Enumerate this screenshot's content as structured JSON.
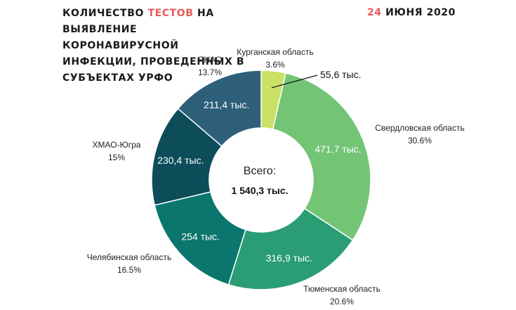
{
  "header": {
    "title_part1": "КОЛИЧЕСТВО ",
    "title_highlight": "ТЕСТОВ",
    "title_part2": " НА ВЫЯВЛЕНИЕ КОРОНАВИРУСНОЙ ИНФЕКЦИИ, ПРОВЕДЕННЫХ В СУБЪЕКТАХ УРФО",
    "date_day": "24",
    "date_rest": " ИЮНЯ 2020"
  },
  "colors": {
    "accent": "#e85a5a"
  },
  "chart_data": {
    "type": "pie",
    "subtype": "donut",
    "center_label": "Всего:",
    "center_value": "1 540,3 тыс.",
    "slices": [
      {
        "name": "Курганская область",
        "percent": "3.6%",
        "value": 55.6,
        "value_label": "55,6 тыс.",
        "color": "#c9e265"
      },
      {
        "name": "Свердловская область",
        "percent": "30.6%",
        "value": 471.7,
        "value_label": "471,7 тыс.",
        "color": "#74c476"
      },
      {
        "name": "Тюменская область",
        "percent": "20.6%",
        "value": 316.9,
        "value_label": "316,9 тыс.",
        "color": "#2a9d74"
      },
      {
        "name": "Челябинская область",
        "percent": "16.5%",
        "value": 254,
        "value_label": "254 тыс.",
        "color": "#0b766e"
      },
      {
        "name": "ХМАО-Югра",
        "percent": "15%",
        "value": 230.4,
        "value_label": "230,4 тыс.",
        "color": "#0d4d5a"
      },
      {
        "name": "ЯНАО",
        "percent": "13.7%",
        "value": 211.4,
        "value_label": "211,4 тыс.",
        "color": "#2e5f79"
      }
    ]
  }
}
